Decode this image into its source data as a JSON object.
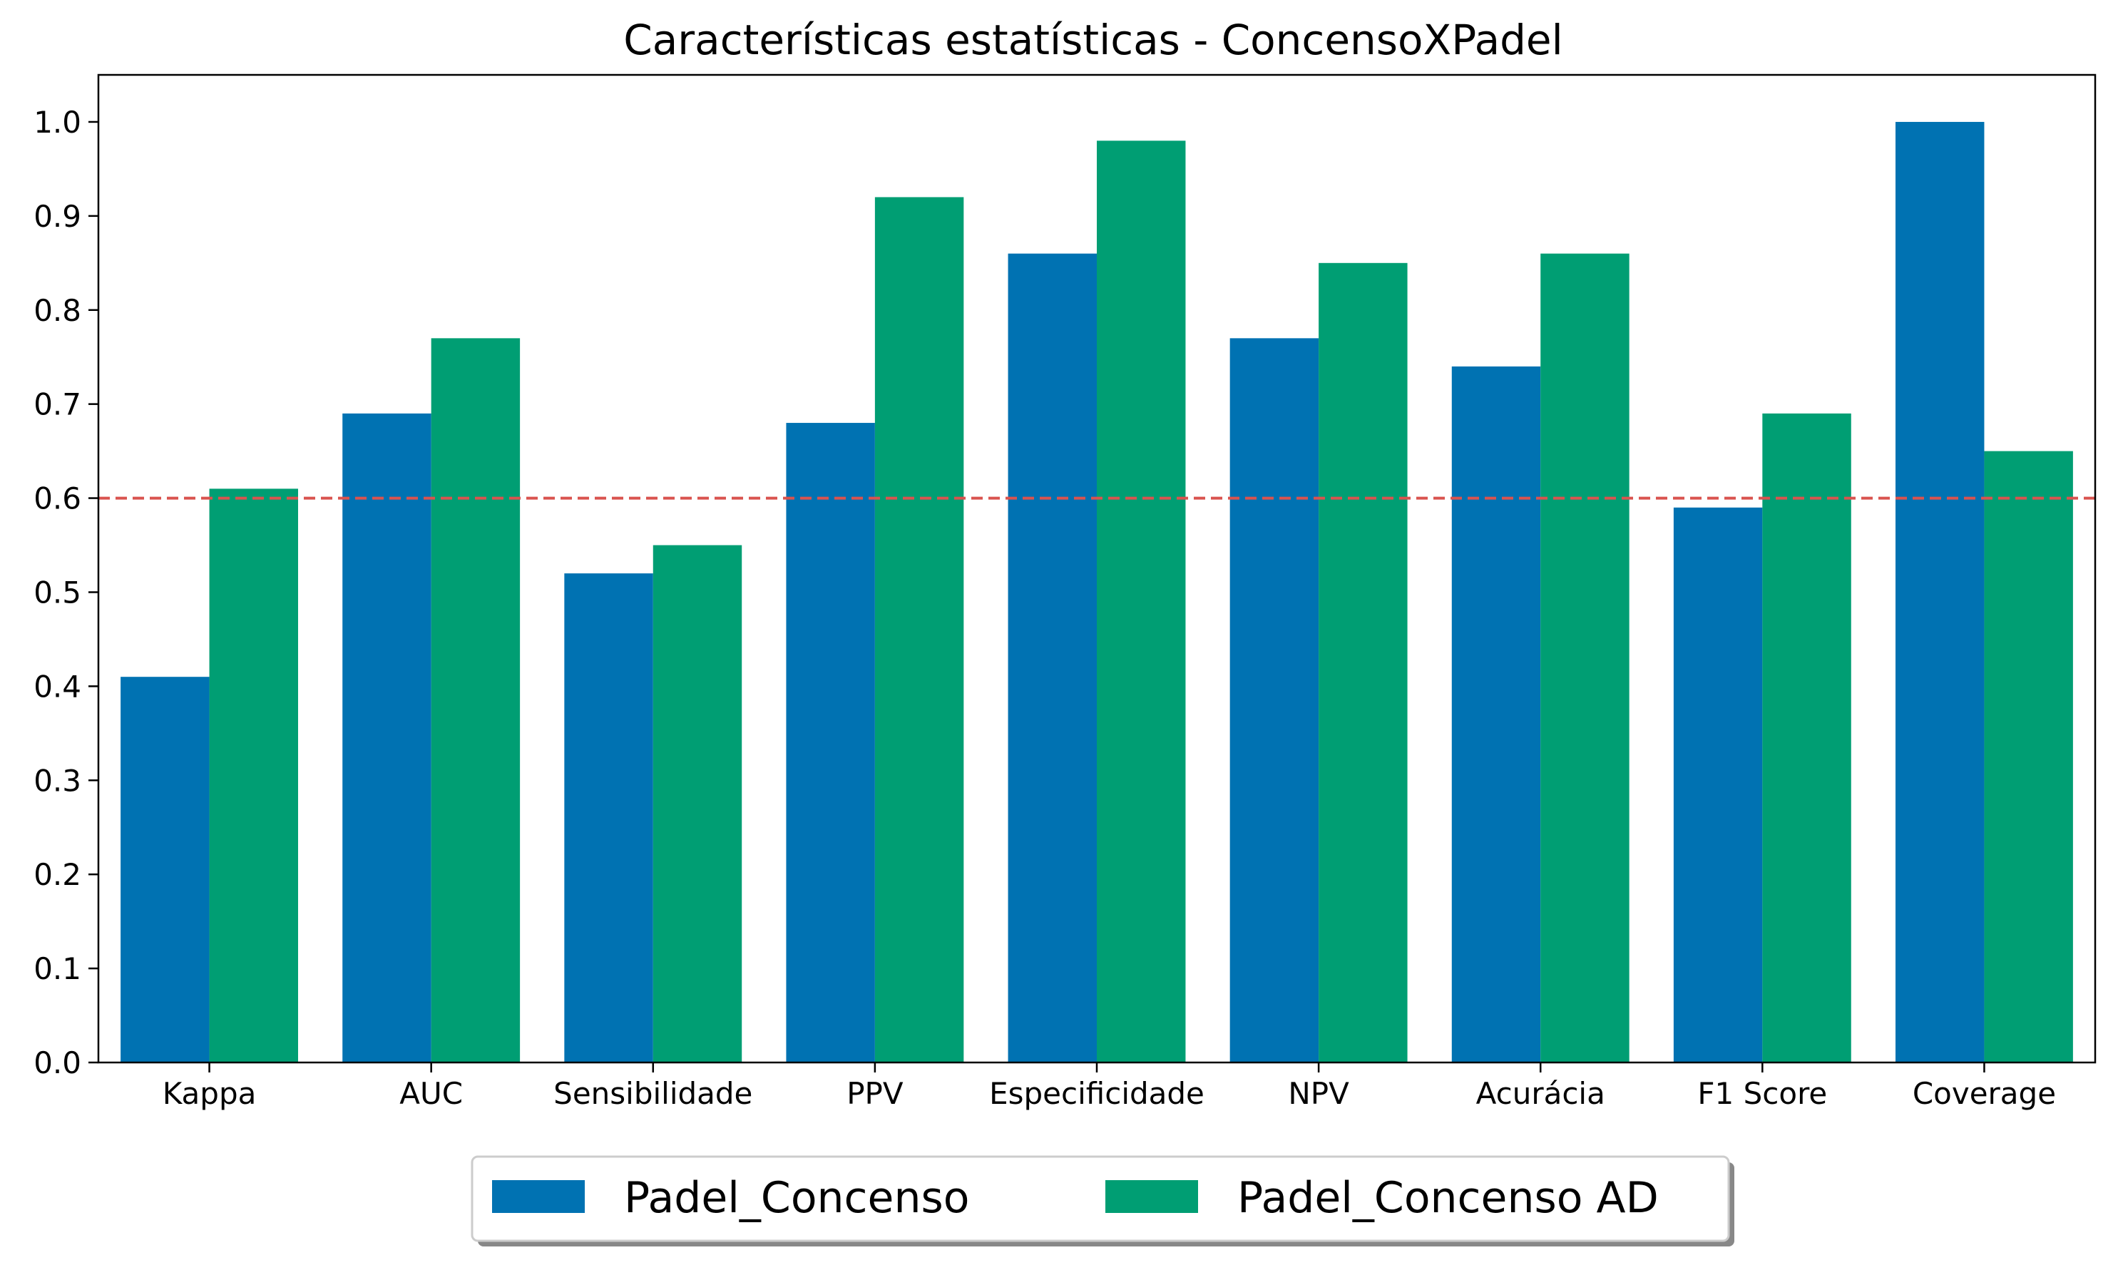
{
  "chart_data": {
    "type": "bar",
    "title": "Características estatísticas - ConcensoXPadel",
    "xlabel": "",
    "ylabel": "",
    "categories": [
      "Kappa",
      "AUC",
      "Sensibilidade",
      "PPV",
      "Especificidade",
      "NPV",
      "Acurácia",
      "F1 Score",
      "Coverage"
    ],
    "series": [
      {
        "name": "Padel_Concenso",
        "color": "#0072b2",
        "values": [
          0.41,
          0.69,
          0.52,
          0.68,
          0.86,
          0.77,
          0.74,
          0.59,
          1.0
        ]
      },
      {
        "name": "Padel_Concenso AD",
        "color": "#009e73",
        "values": [
          0.61,
          0.77,
          0.55,
          0.92,
          0.98,
          0.85,
          0.86,
          0.69,
          0.65
        ]
      }
    ],
    "ylim": [
      0,
      1.05
    ],
    "yticks": [
      "0.0",
      "0.1",
      "0.2",
      "0.3",
      "0.4",
      "0.5",
      "0.6",
      "0.7",
      "0.8",
      "0.9",
      "1.0"
    ],
    "reference_line": {
      "y": 0.6,
      "color": "#d9534f",
      "style": "dashed"
    },
    "legend": {
      "placement": "bottom-center",
      "shadow": true
    },
    "grid": false
  }
}
